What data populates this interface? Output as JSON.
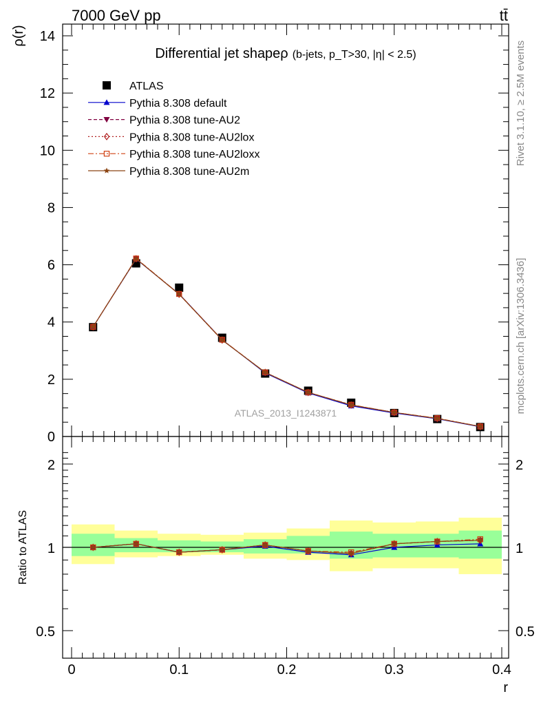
{
  "header": {
    "left_label": "7000 GeV pp",
    "right_label": "tt̄"
  },
  "side_labels": {
    "rivet": "Rivet 3.1.10, ≥ 2.5M events",
    "mcplots": "mcplots.cern.ch [arXiv:1306.3436]"
  },
  "chart_data": [
    {
      "type": "line",
      "panel": "main",
      "title": "Differential jet shapeρ",
      "subtitle": "(b-jets, p_T>30, |η| < 2.5)",
      "ylabel": "ρ(r)",
      "watermark": "ATLAS_2013_I1243871",
      "xlim": [
        0,
        0.4
      ],
      "ylim": [
        0,
        14.5
      ],
      "y_ticks": [
        0,
        2,
        4,
        6,
        8,
        10,
        12,
        14
      ],
      "x": [
        0.02,
        0.06,
        0.1,
        0.14,
        0.18,
        0.22,
        0.26,
        0.3,
        0.34,
        0.38
      ],
      "legend_position": "top-left",
      "series": [
        {
          "name": "ATLAS",
          "marker": "square",
          "color": "#000000",
          "values": [
            3.82,
            6.05,
            5.2,
            3.45,
            2.2,
            1.6,
            1.18,
            0.82,
            0.61,
            0.33
          ]
        },
        {
          "name": "Pythia 8.308 default",
          "marker": "triangle-up",
          "color": "#0000cc",
          "dash": "",
          "values": [
            3.83,
            6.2,
            4.98,
            3.38,
            2.22,
            1.52,
            1.07,
            0.82,
            0.62,
            0.34
          ]
        },
        {
          "name": "Pythia 8.308 tune-AU2",
          "marker": "triangle-down",
          "color": "#800040",
          "dash": "5,3",
          "values": [
            3.83,
            6.21,
            4.97,
            3.37,
            2.24,
            1.54,
            1.1,
            0.84,
            0.63,
            0.35
          ]
        },
        {
          "name": "Pythia 8.308 tune-AU2lox",
          "marker": "diamond-open",
          "color": "#b02020",
          "dash": "2,3",
          "values": [
            3.83,
            6.21,
            4.97,
            3.37,
            2.24,
            1.54,
            1.1,
            0.84,
            0.63,
            0.35
          ]
        },
        {
          "name": "Pythia 8.308 tune-AU2loxx",
          "marker": "square-open",
          "color": "#d04010",
          "dash": "8,3,2,3",
          "values": [
            3.83,
            6.22,
            4.98,
            3.38,
            2.24,
            1.54,
            1.11,
            0.84,
            0.64,
            0.35
          ]
        },
        {
          "name": "Pythia 8.308 tune-AU2m",
          "marker": "star",
          "color": "#8b4513",
          "dash": "",
          "values": [
            3.83,
            6.21,
            4.97,
            3.37,
            2.24,
            1.54,
            1.1,
            0.84,
            0.63,
            0.35
          ]
        }
      ]
    },
    {
      "type": "line",
      "panel": "ratio",
      "ylabel": "Ratio to ATLAS",
      "xlabel": "r",
      "xlim": [
        0,
        0.4
      ],
      "ylim": [
        0.4,
        2.3
      ],
      "y_ticks": [
        0.5,
        1,
        2
      ],
      "x_ticks": [
        0,
        0.1,
        0.2,
        0.3,
        0.4
      ],
      "x_tick_labels": [
        "0",
        "0.1",
        "0.2",
        "0.3",
        "0.4"
      ],
      "bins": [
        [
          0,
          0.04
        ],
        [
          0.04,
          0.08
        ],
        [
          0.08,
          0.12
        ],
        [
          0.12,
          0.16
        ],
        [
          0.16,
          0.2
        ],
        [
          0.2,
          0.24
        ],
        [
          0.24,
          0.28
        ],
        [
          0.28,
          0.32
        ],
        [
          0.32,
          0.36
        ],
        [
          0.36,
          0.4
        ]
      ],
      "band_outer": {
        "color": "#ffff99",
        "lo": [
          0.87,
          0.92,
          0.93,
          0.94,
          0.91,
          0.9,
          0.82,
          0.84,
          0.84,
          0.8
        ],
        "hi": [
          1.21,
          1.15,
          1.12,
          1.11,
          1.13,
          1.17,
          1.25,
          1.23,
          1.24,
          1.28
        ]
      },
      "band_inner": {
        "color": "#99ff99",
        "lo": [
          0.93,
          0.96,
          0.96,
          0.96,
          0.95,
          0.95,
          0.91,
          0.92,
          0.92,
          0.91
        ],
        "hi": [
          1.12,
          1.08,
          1.06,
          1.05,
          1.07,
          1.1,
          1.14,
          1.12,
          1.12,
          1.15
        ]
      },
      "x": [
        0.02,
        0.06,
        0.1,
        0.14,
        0.18,
        0.22,
        0.26,
        0.3,
        0.34,
        0.38
      ],
      "series": [
        {
          "name": "Pythia 8.308 default",
          "marker": "triangle-up",
          "color": "#0000cc",
          "dash": "",
          "values": [
            1.0,
            1.03,
            0.96,
            0.98,
            1.01,
            0.96,
            0.94,
            1.0,
            1.02,
            1.03
          ]
        },
        {
          "name": "Pythia 8.308 tune-AU2",
          "marker": "triangle-down",
          "color": "#800040",
          "dash": "5,3",
          "values": [
            1.0,
            1.03,
            0.96,
            0.98,
            1.02,
            0.97,
            0.95,
            1.03,
            1.05,
            1.06
          ]
        },
        {
          "name": "Pythia 8.308 tune-AU2lox",
          "marker": "diamond-open",
          "color": "#b02020",
          "dash": "2,3",
          "values": [
            1.0,
            1.03,
            0.96,
            0.98,
            1.02,
            0.97,
            0.95,
            1.03,
            1.05,
            1.06
          ]
        },
        {
          "name": "Pythia 8.308 tune-AU2loxx",
          "marker": "square-open",
          "color": "#d04010",
          "dash": "8,3,2,3",
          "values": [
            1.0,
            1.03,
            0.96,
            0.98,
            1.02,
            0.97,
            0.96,
            1.03,
            1.05,
            1.07
          ]
        },
        {
          "name": "Pythia 8.308 tune-AU2m",
          "marker": "star",
          "color": "#8b4513",
          "dash": "",
          "values": [
            1.0,
            1.03,
            0.96,
            0.98,
            1.02,
            0.97,
            0.95,
            1.03,
            1.05,
            1.06
          ]
        }
      ]
    }
  ]
}
